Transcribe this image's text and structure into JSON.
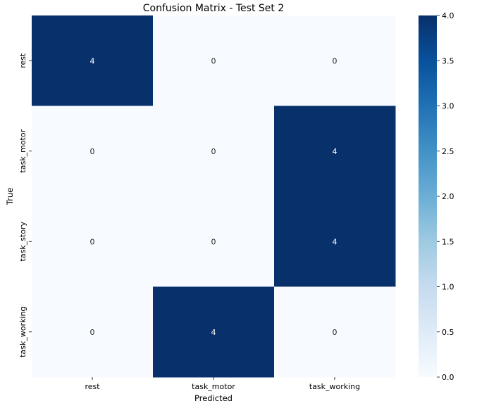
{
  "chart_data": {
    "type": "heatmap",
    "title": "Confusion Matrix - Test Set 2",
    "xlabel": "Predicted",
    "ylabel": "True",
    "x_categories": [
      "rest",
      "task_motor",
      "task_working"
    ],
    "y_categories": [
      "rest",
      "task_motor",
      "task_story",
      "task_working"
    ],
    "values": [
      [
        4,
        0,
        0
      ],
      [
        0,
        0,
        4
      ],
      [
        0,
        0,
        4
      ],
      [
        0,
        4,
        0
      ]
    ],
    "colormap": "Blues",
    "color_low": "#f7fbff",
    "color_high": "#08306b",
    "colorbar": {
      "range": [
        0.0,
        4.0
      ],
      "ticks": [
        0.0,
        0.5,
        1.0,
        1.5,
        2.0,
        2.5,
        3.0,
        3.5,
        4.0
      ],
      "tick_labels": [
        "0.0",
        "0.5",
        "1.0",
        "1.5",
        "2.0",
        "2.5",
        "3.0",
        "3.5",
        "4.0"
      ]
    },
    "text_color_dark_cells": "#ffffff",
    "text_color_light_cells": "#262626"
  }
}
